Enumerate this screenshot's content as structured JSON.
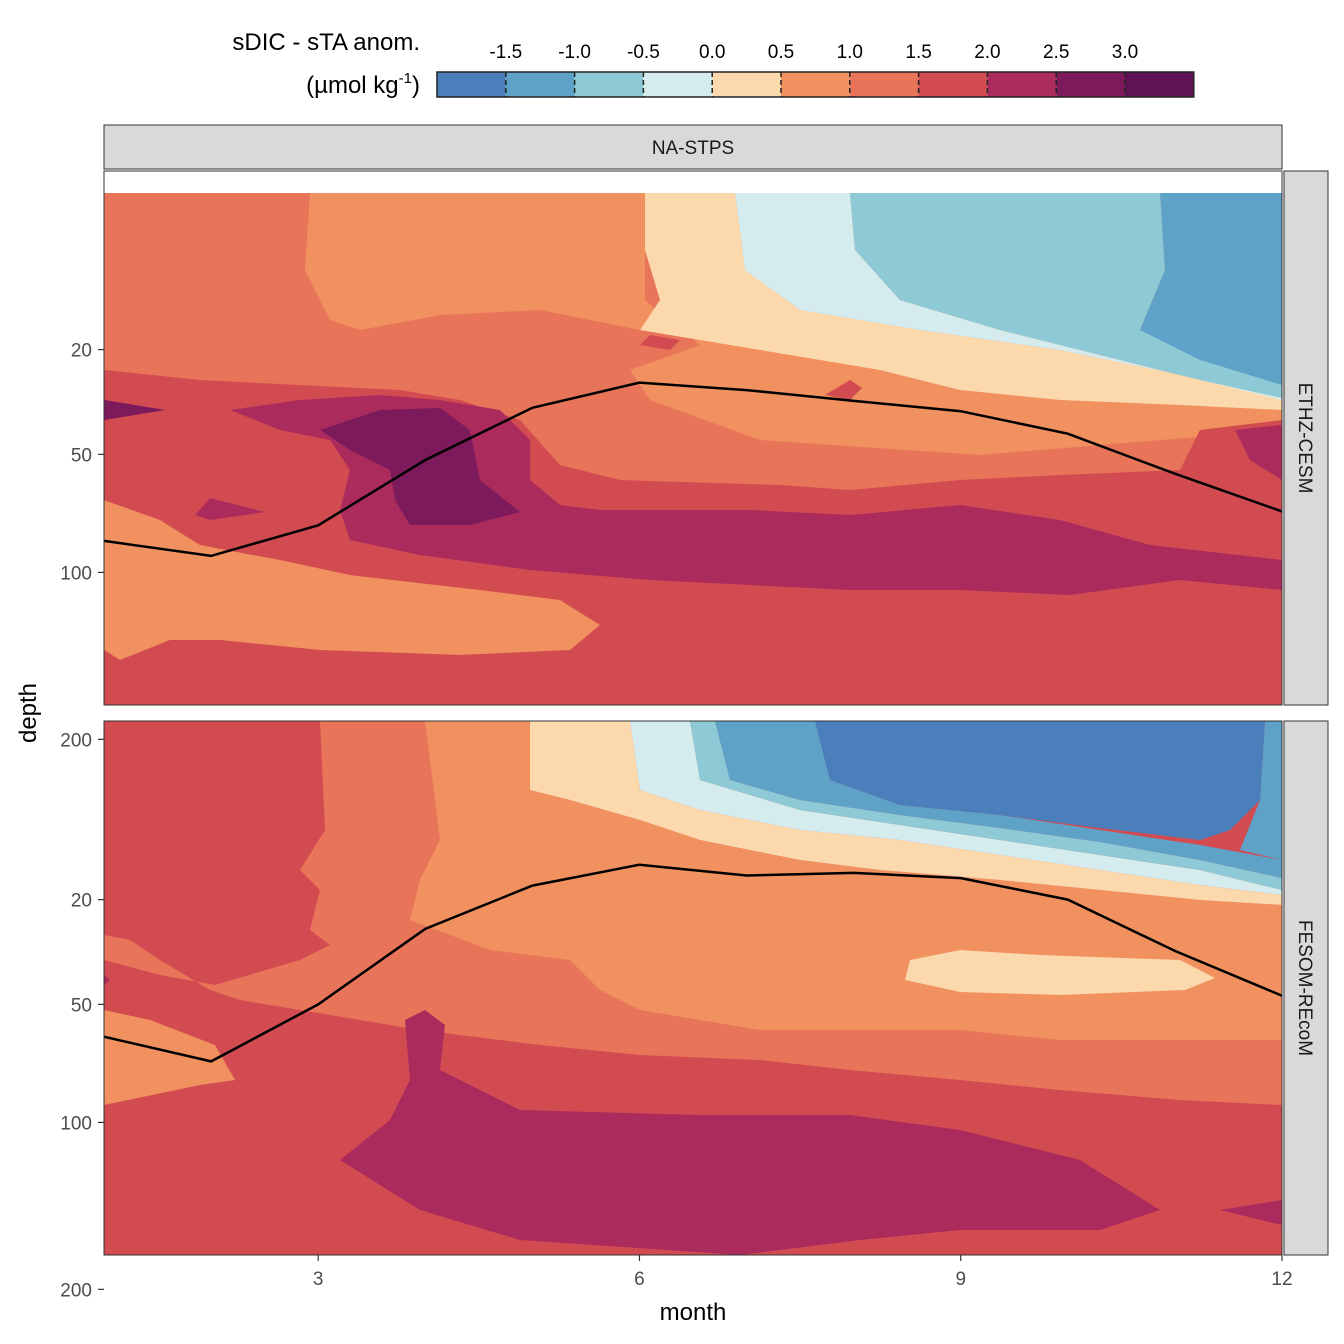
{
  "chart_data": {
    "type": "heatmap",
    "subtype": "filled-contour",
    "legend": {
      "title_line1": "sDIC - sTA anom.",
      "title_line2_pre": "(µmol kg",
      "title_line2_sup": "-1",
      "title_line2_post": ")",
      "position": "top",
      "breaks": [
        "-1.5",
        "-1.0",
        "-0.5",
        "0.0",
        "0.5",
        "1.0",
        "1.5",
        "2.0",
        "2.5",
        "3.0"
      ],
      "colors": [
        "#4a7fbb",
        "#5fa2c8",
        "#8ecad6",
        "#d5ecef",
        "#fcd9ad",
        "#f0915f",
        "#e8755a",
        "#d24b51",
        "#ab2b5d",
        "#7d1a5c",
        "#5e1357"
      ]
    },
    "column_strip": "NA-STPS",
    "xlabel": "month",
    "ylabel": "depth",
    "xlim": [
      1,
      12
    ],
    "x_ticks": [
      "3",
      "6",
      "9",
      "12"
    ],
    "y_ticks": [
      "20",
      "50",
      "100",
      "200"
    ],
    "y_scale": "reversed square-root",
    "grid": false,
    "panels": [
      {
        "strip": "ETHZ-CESM",
        "mld_line": {
          "x": [
            1,
            2,
            3,
            4,
            5,
            6,
            7,
            8,
            9,
            10,
            11,
            12
          ],
          "y": [
            85,
            92,
            78,
            52,
            35,
            28,
            30,
            33,
            36,
            43,
            57,
            72
          ]
        }
      },
      {
        "strip": "FESOM-REcoM",
        "mld_line": {
          "x": [
            1,
            2,
            3,
            4,
            5,
            6,
            7,
            8,
            9,
            10,
            11,
            12
          ],
          "y": [
            62,
            72,
            50,
            27,
            17,
            13,
            15,
            14.5,
            15.5,
            20,
            33,
            47
          ]
        }
      }
    ]
  }
}
